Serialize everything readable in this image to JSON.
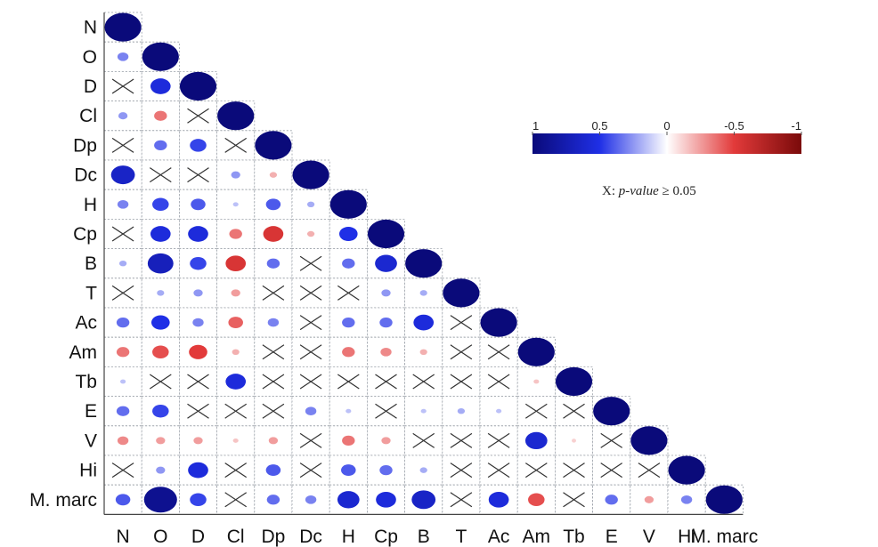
{
  "chart_data": {
    "type": "heatmap",
    "subtype": "correlation-matrix-lower-triangle",
    "variables": [
      "N",
      "O",
      "D",
      "Cl",
      "Dp",
      "Dc",
      "H",
      "Cp",
      "B",
      "T",
      "Ac",
      "Am",
      "Tb",
      "E",
      "V",
      "Hi",
      "M. marc"
    ],
    "x_labels": [
      "N",
      "O",
      "D",
      "Cl",
      "Dp",
      "Dc",
      "H",
      "Cp",
      "B",
      "T",
      "Ac",
      "Am",
      "Tb",
      "E",
      "V",
      "Hi",
      "M. marc"
    ],
    "y_labels": [
      "N",
      "O",
      "D",
      "Cl",
      "Dp",
      "Dc",
      "H",
      "Cp",
      "B",
      "T",
      "Ac",
      "Am",
      "Tb",
      "E",
      "V",
      "Hi",
      "M. marc"
    ],
    "matrix": [
      [
        1
      ],
      [
        0.3,
        1
      ],
      [
        null,
        0.55,
        1
      ],
      [
        0.25,
        -0.35,
        null,
        1
      ],
      [
        null,
        0.35,
        0.45,
        null,
        1
      ],
      [
        0.65,
        null,
        null,
        0.25,
        -0.2,
        1
      ],
      [
        0.3,
        0.45,
        0.4,
        0.15,
        0.4,
        0.2,
        1
      ],
      [
        null,
        0.55,
        0.55,
        -0.35,
        -0.55,
        -0.2,
        0.5,
        1
      ],
      [
        0.2,
        0.7,
        0.45,
        -0.55,
        0.35,
        null,
        0.35,
        0.6,
        1
      ],
      [
        null,
        0.2,
        0.25,
        -0.25,
        null,
        null,
        null,
        0.25,
        0.2,
        1
      ],
      [
        0.35,
        0.5,
        0.3,
        -0.4,
        0.3,
        null,
        0.35,
        0.35,
        0.55,
        null,
        1
      ],
      [
        -0.35,
        -0.45,
        -0.5,
        -0.2,
        null,
        null,
        -0.35,
        -0.3,
        -0.2,
        null,
        null,
        1
      ],
      [
        0.15,
        null,
        null,
        0.55,
        null,
        null,
        null,
        null,
        null,
        null,
        null,
        -0.15,
        1
      ],
      [
        0.35,
        0.45,
        null,
        null,
        null,
        0.3,
        0.15,
        null,
        0.15,
        0.2,
        0.15,
        null,
        null,
        1
      ],
      [
        -0.3,
        -0.25,
        -0.25,
        -0.15,
        -0.25,
        null,
        -0.35,
        -0.25,
        null,
        null,
        null,
        0.6,
        -0.12,
        null,
        1
      ],
      [
        null,
        0.25,
        0.55,
        null,
        0.4,
        null,
        0.4,
        0.35,
        0.2,
        null,
        null,
        null,
        null,
        null,
        null,
        1
      ],
      [
        0.4,
        0.9,
        0.45,
        null,
        0.35,
        0.3,
        0.6,
        0.55,
        0.65,
        null,
        0.55,
        -0.45,
        null,
        0.35,
        -0.25,
        0.3,
        1
      ]
    ],
    "colorbar": {
      "tick_labels": [
        "1",
        "0.5",
        "0",
        "-0.5",
        "-1"
      ],
      "range": [
        1,
        -1
      ],
      "colors": {
        "strong_positive": "#0a0a7a",
        "positive": "#1f2fe6",
        "neutral": "#ffffff",
        "negative": "#e23a3a",
        "strong_negative": "#7a0a0a"
      }
    },
    "note": "X: p-value ≥ 0.05",
    "note_prefix": "X: ",
    "note_italic": "p-value",
    "note_suffix": " ≥ 0.05",
    "grid": true,
    "legend_placement": "top-right"
  }
}
